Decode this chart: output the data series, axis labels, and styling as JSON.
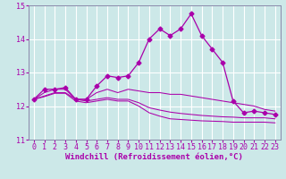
{
  "xlabel": "Windchill (Refroidissement éolien,°C)",
  "background_color": "#cce8e8",
  "grid_color": "#ffffff",
  "line_color": "#aa00aa",
  "spine_color": "#8888aa",
  "xlim": [
    -0.5,
    23.5
  ],
  "ylim": [
    11,
    15
  ],
  "yticks": [
    11,
    12,
    13,
    14,
    15
  ],
  "xticks": [
    0,
    1,
    2,
    3,
    4,
    5,
    6,
    7,
    8,
    9,
    10,
    11,
    12,
    13,
    14,
    15,
    16,
    17,
    18,
    19,
    20,
    21,
    22,
    23
  ],
  "series": [
    [
      12.2,
      12.5,
      12.5,
      12.55,
      12.2,
      12.2,
      12.6,
      12.9,
      12.85,
      12.9,
      13.3,
      14.0,
      14.3,
      14.1,
      14.3,
      14.75,
      14.1,
      13.7,
      13.3,
      12.15,
      11.8,
      11.85,
      11.8,
      11.75
    ],
    [
      12.2,
      12.4,
      12.5,
      12.5,
      12.2,
      12.2,
      12.4,
      12.5,
      12.4,
      12.5,
      12.45,
      12.4,
      12.4,
      12.35,
      12.35,
      12.3,
      12.25,
      12.2,
      12.15,
      12.1,
      12.05,
      12.0,
      11.9,
      11.85
    ],
    [
      12.2,
      12.3,
      12.4,
      12.4,
      12.2,
      12.15,
      12.2,
      12.25,
      12.2,
      12.2,
      12.1,
      11.95,
      11.88,
      11.82,
      11.78,
      11.75,
      11.72,
      11.7,
      11.68,
      11.67,
      11.65,
      11.65,
      11.65,
      11.62
    ],
    [
      12.2,
      12.28,
      12.38,
      12.38,
      12.15,
      12.1,
      12.15,
      12.2,
      12.15,
      12.15,
      12.0,
      11.8,
      11.7,
      11.62,
      11.6,
      11.58,
      11.56,
      11.55,
      11.54,
      11.52,
      11.52,
      11.52,
      11.52,
      11.5
    ]
  ],
  "xlabel_fontsize": 6.5,
  "tick_fontsize": 6.0,
  "linewidth_main": 0.9,
  "linewidth_other": 0.75,
  "marker": "D",
  "marker_size": 2.5
}
